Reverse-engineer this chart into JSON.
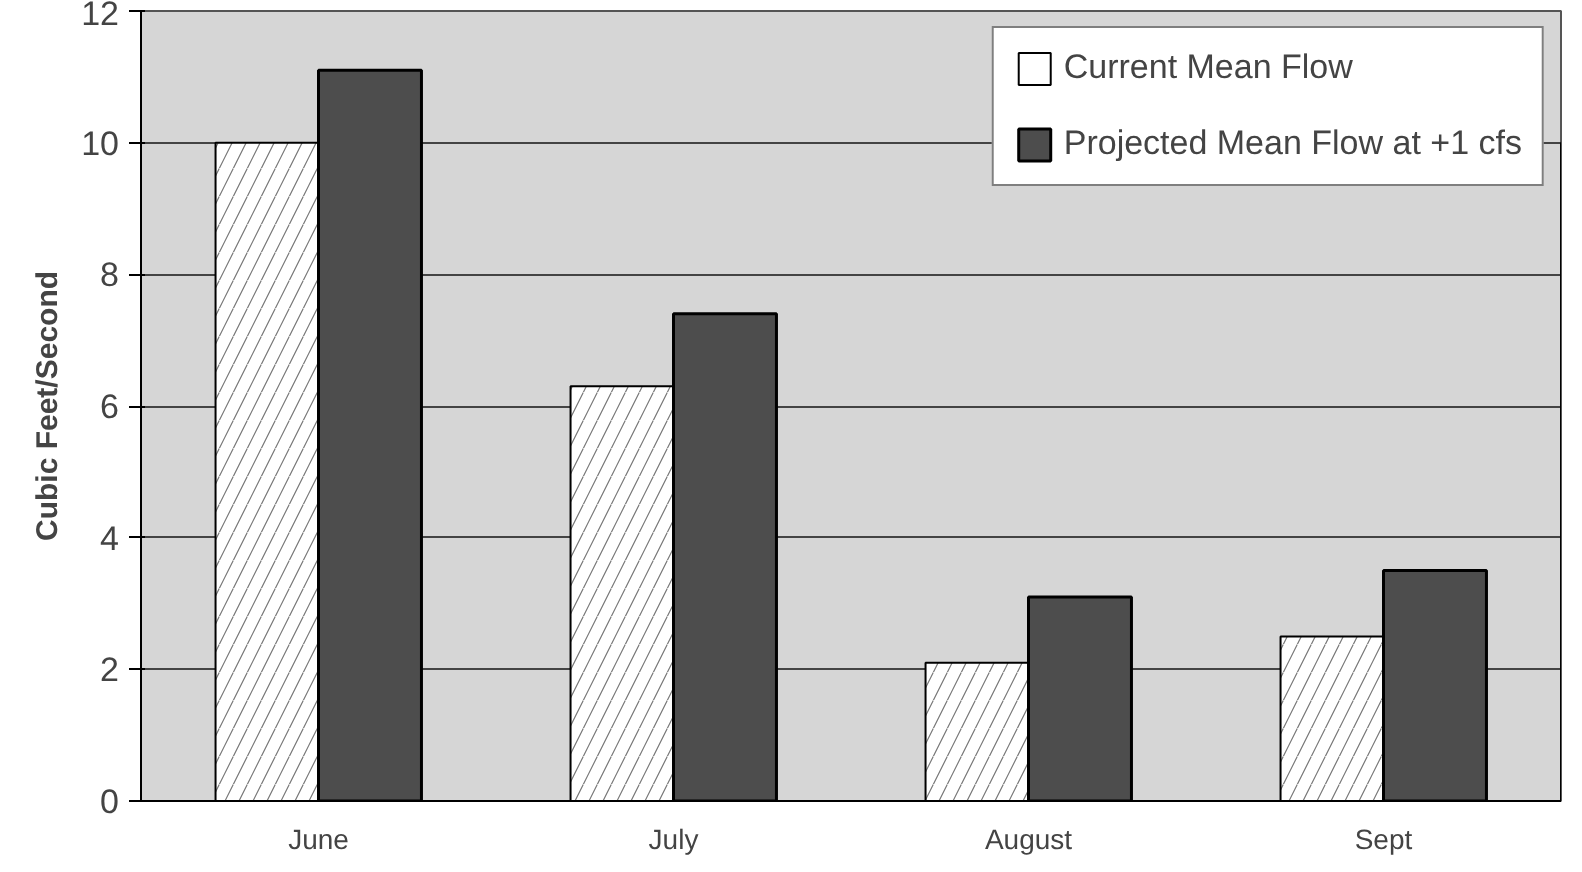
{
  "chart_data": {
    "type": "bar",
    "ylabel": "Cubic Feet/Second",
    "categories": [
      "June",
      "July",
      "August",
      "Sept"
    ],
    "series": [
      {
        "name": "Current Mean Flow",
        "color": "#ffffff",
        "values": [
          10.0,
          6.3,
          2.1,
          2.5
        ]
      },
      {
        "name": "Projected Mean Flow at +1 cfs",
        "color": "#4d4d4d",
        "values": [
          11.1,
          7.4,
          3.1,
          3.5
        ]
      }
    ],
    "ylim": [
      0,
      12
    ],
    "yticks": [
      0,
      2,
      4,
      6,
      8,
      10,
      12
    ],
    "grid": "y",
    "legend": "top right"
  }
}
